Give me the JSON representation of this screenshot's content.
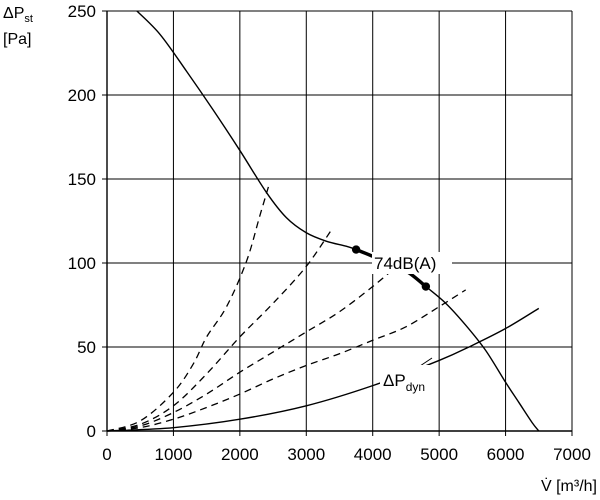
{
  "chart_data": {
    "type": "line",
    "title": "",
    "xlabel": "V̇ [m³/h]",
    "ylabel_lines": [
      "ΔPst",
      "[Pa]"
    ],
    "ylabel": {
      "symbol": "ΔP",
      "sub": "st",
      "unit": "[Pa]"
    },
    "xlim": [
      0,
      7000
    ],
    "ylim": [
      0,
      250
    ],
    "x_ticks": [
      "0",
      "1000",
      "2000",
      "3000",
      "4000",
      "5000",
      "6000",
      "7000"
    ],
    "y_ticks": [
      "0",
      "50",
      "100",
      "150",
      "200",
      "250"
    ],
    "x_tick_values": [
      0,
      1000,
      2000,
      3000,
      4000,
      5000,
      6000,
      7000
    ],
    "y_tick_values": [
      0,
      50,
      100,
      150,
      200,
      250
    ],
    "grid": true,
    "series": [
      {
        "style": "solid",
        "role": "fan-curve",
        "x": [
          450,
          800,
          1200,
          1600,
          2000,
          2400,
          2700,
          3000,
          3300,
          3600,
          3750,
          4000,
          4300,
          4550,
          4800,
          5100,
          5400,
          5700,
          6000,
          6200,
          6400,
          6500
        ],
        "y": [
          250,
          236,
          214,
          191,
          167,
          142,
          127,
          118,
          113,
          110,
          108,
          104,
          99,
          94,
          86,
          76,
          63,
          48,
          29,
          17,
          5,
          0
        ]
      },
      {
        "style": "solid",
        "role": "dynamic-pressure",
        "label": {
          "symbol": "ΔP",
          "sub": "dyn"
        },
        "x": [
          0,
          1000,
          2000,
          3000,
          4000,
          5000,
          5500,
          6000,
          6500
        ],
        "y": [
          0,
          2,
          7,
          15,
          27,
          42,
          51,
          61,
          73
        ]
      },
      {
        "style": "dashed",
        "role": "system-curve",
        "x": [
          0,
          500,
          1000,
          1300,
          1500,
          1800,
          2100,
          2300,
          2450
        ],
        "y": [
          0,
          6,
          23,
          40,
          56,
          74,
          101,
          128,
          148
        ]
      },
      {
        "style": "dashed",
        "role": "system-curve",
        "x": [
          0,
          500,
          1000,
          1500,
          2000,
          2500,
          3000,
          3400
        ],
        "y": [
          0,
          4,
          15,
          34,
          56,
          76,
          98,
          121
        ]
      },
      {
        "style": "dashed",
        "role": "system-curve",
        "x": [
          0,
          500,
          1000,
          1500,
          2000,
          2500,
          3000,
          3500,
          4000,
          4300
        ],
        "y": [
          0,
          3,
          11,
          22,
          35,
          47,
          59,
          71,
          86,
          96
        ]
      },
      {
        "style": "dashed",
        "role": "system-curve",
        "x": [
          0,
          500,
          1000,
          1500,
          2000,
          2500,
          3000,
          3500,
          4000,
          4500,
          5000,
          5400
        ],
        "y": [
          0,
          2,
          7,
          14,
          22,
          31,
          39,
          46,
          54,
          62,
          74,
          84
        ]
      }
    ],
    "highlight": {
      "label": "74dB(A)",
      "x": [
        3750,
        4000,
        4300,
        4550,
        4800
      ],
      "y": [
        108,
        104,
        99,
        94,
        86
      ],
      "points": [
        {
          "x": 3750,
          "y": 108
        },
        {
          "x": 4800,
          "y": 86
        }
      ]
    }
  }
}
